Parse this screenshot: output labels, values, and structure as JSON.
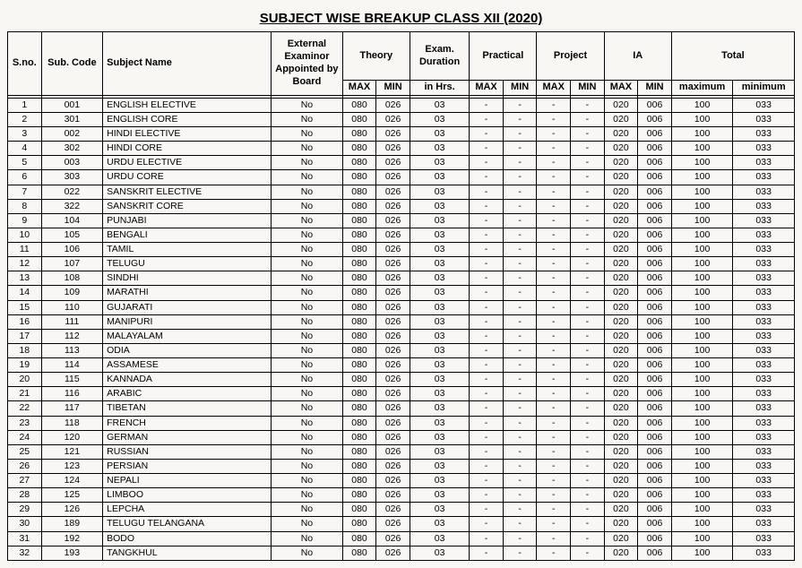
{
  "title": "SUBJECT WISE BREAKUP CLASS XII (2020)",
  "headers": {
    "sno": "S.no.",
    "code": "Sub. Code",
    "subject": "Subject Name",
    "external": "External Examinor Appointed by Board",
    "theory": "Theory",
    "duration": "Exam. Duration",
    "practical": "Practical",
    "project": "Project",
    "ia": "IA",
    "total": "Total",
    "max": "MAX",
    "min": "MIN",
    "inhrs": "in Hrs.",
    "maximum": "maximum",
    "minimum": "minimum"
  },
  "rows": [
    {
      "sno": "1",
      "code": "001",
      "subj": "ENGLISH ELECTIVE",
      "ext": "No",
      "tmax": "080",
      "tmin": "026",
      "dur": "03",
      "pmax": "-",
      "pmin": "-",
      "prmax": "-",
      "prmin": "-",
      "iamax": "020",
      "iamin": "006",
      "totmax": "100",
      "totmin": "033"
    },
    {
      "sno": "2",
      "code": "301",
      "subj": "ENGLISH CORE",
      "ext": "No",
      "tmax": "080",
      "tmin": "026",
      "dur": "03",
      "pmax": "-",
      "pmin": "-",
      "prmax": "-",
      "prmin": "-",
      "iamax": "020",
      "iamin": "006",
      "totmax": "100",
      "totmin": "033"
    },
    {
      "sno": "3",
      "code": "002",
      "subj": "HINDI ELECTIVE",
      "ext": "No",
      "tmax": "080",
      "tmin": "026",
      "dur": "03",
      "pmax": "-",
      "pmin": "-",
      "prmax": "-",
      "prmin": "-",
      "iamax": "020",
      "iamin": "006",
      "totmax": "100",
      "totmin": "033"
    },
    {
      "sno": "4",
      "code": "302",
      "subj": "HINDI CORE",
      "ext": "No",
      "tmax": "080",
      "tmin": "026",
      "dur": "03",
      "pmax": "-",
      "pmin": "-",
      "prmax": "-",
      "prmin": "-",
      "iamax": "020",
      "iamin": "006",
      "totmax": "100",
      "totmin": "033"
    },
    {
      "sno": "5",
      "code": "003",
      "subj": "URDU ELECTIVE",
      "ext": "No",
      "tmax": "080",
      "tmin": "026",
      "dur": "03",
      "pmax": "-",
      "pmin": "-",
      "prmax": "-",
      "prmin": "-",
      "iamax": "020",
      "iamin": "006",
      "totmax": "100",
      "totmin": "033"
    },
    {
      "sno": "6",
      "code": "303",
      "subj": "URDU CORE",
      "ext": "No",
      "tmax": "080",
      "tmin": "026",
      "dur": "03",
      "pmax": "-",
      "pmin": "-",
      "prmax": "-",
      "prmin": "-",
      "iamax": "020",
      "iamin": "006",
      "totmax": "100",
      "totmin": "033"
    },
    {
      "sno": "7",
      "code": "022",
      "subj": "SANSKRIT ELECTIVE",
      "ext": "No",
      "tmax": "080",
      "tmin": "026",
      "dur": "03",
      "pmax": "-",
      "pmin": "-",
      "prmax": "-",
      "prmin": "-",
      "iamax": "020",
      "iamin": "006",
      "totmax": "100",
      "totmin": "033"
    },
    {
      "sno": "8",
      "code": "322",
      "subj": "SANSKRIT CORE",
      "ext": "No",
      "tmax": "080",
      "tmin": "026",
      "dur": "03",
      "pmax": "-",
      "pmin": "-",
      "prmax": "-",
      "prmin": "-",
      "iamax": "020",
      "iamin": "006",
      "totmax": "100",
      "totmin": "033"
    },
    {
      "sno": "9",
      "code": "104",
      "subj": "PUNJABI",
      "ext": "No",
      "tmax": "080",
      "tmin": "026",
      "dur": "03",
      "pmax": "-",
      "pmin": "-",
      "prmax": "-",
      "prmin": "-",
      "iamax": "020",
      "iamin": "006",
      "totmax": "100",
      "totmin": "033"
    },
    {
      "sno": "10",
      "code": "105",
      "subj": "BENGALI",
      "ext": "No",
      "tmax": "080",
      "tmin": "026",
      "dur": "03",
      "pmax": "-",
      "pmin": "-",
      "prmax": "-",
      "prmin": "-",
      "iamax": "020",
      "iamin": "006",
      "totmax": "100",
      "totmin": "033"
    },
    {
      "sno": "11",
      "code": "106",
      "subj": "TAMIL",
      "ext": "No",
      "tmax": "080",
      "tmin": "026",
      "dur": "03",
      "pmax": "-",
      "pmin": "-",
      "prmax": "-",
      "prmin": "-",
      "iamax": "020",
      "iamin": "006",
      "totmax": "100",
      "totmin": "033"
    },
    {
      "sno": "12",
      "code": "107",
      "subj": "TELUGU",
      "ext": "No",
      "tmax": "080",
      "tmin": "026",
      "dur": "03",
      "pmax": "-",
      "pmin": "-",
      "prmax": "-",
      "prmin": "-",
      "iamax": "020",
      "iamin": "006",
      "totmax": "100",
      "totmin": "033"
    },
    {
      "sno": "13",
      "code": "108",
      "subj": "SINDHI",
      "ext": "No",
      "tmax": "080",
      "tmin": "026",
      "dur": "03",
      "pmax": "-",
      "pmin": "-",
      "prmax": "-",
      "prmin": "-",
      "iamax": "020",
      "iamin": "006",
      "totmax": "100",
      "totmin": "033"
    },
    {
      "sno": "14",
      "code": "109",
      "subj": "MARATHI",
      "ext": "No",
      "tmax": "080",
      "tmin": "026",
      "dur": "03",
      "pmax": "-",
      "pmin": "-",
      "prmax": "-",
      "prmin": "-",
      "iamax": "020",
      "iamin": "006",
      "totmax": "100",
      "totmin": "033"
    },
    {
      "sno": "15",
      "code": "110",
      "subj": "GUJARATI",
      "ext": "No",
      "tmax": "080",
      "tmin": "026",
      "dur": "03",
      "pmax": "-",
      "pmin": "-",
      "prmax": "-",
      "prmin": "-",
      "iamax": "020",
      "iamin": "006",
      "totmax": "100",
      "totmin": "033"
    },
    {
      "sno": "16",
      "code": "111",
      "subj": "MANIPURI",
      "ext": "No",
      "tmax": "080",
      "tmin": "026",
      "dur": "03",
      "pmax": "-",
      "pmin": "-",
      "prmax": "-",
      "prmin": "-",
      "iamax": "020",
      "iamin": "006",
      "totmax": "100",
      "totmin": "033"
    },
    {
      "sno": "17",
      "code": "112",
      "subj": "MALAYALAM",
      "ext": "No",
      "tmax": "080",
      "tmin": "026",
      "dur": "03",
      "pmax": "-",
      "pmin": "-",
      "prmax": "-",
      "prmin": "-",
      "iamax": "020",
      "iamin": "006",
      "totmax": "100",
      "totmin": "033"
    },
    {
      "sno": "18",
      "code": "113",
      "subj": "ODIA",
      "ext": "No",
      "tmax": "080",
      "tmin": "026",
      "dur": "03",
      "pmax": "-",
      "pmin": "-",
      "prmax": "-",
      "prmin": "-",
      "iamax": "020",
      "iamin": "006",
      "totmax": "100",
      "totmin": "033"
    },
    {
      "sno": "19",
      "code": "114",
      "subj": "ASSAMESE",
      "ext": "No",
      "tmax": "080",
      "tmin": "026",
      "dur": "03",
      "pmax": "-",
      "pmin": "-",
      "prmax": "-",
      "prmin": "-",
      "iamax": "020",
      "iamin": "006",
      "totmax": "100",
      "totmin": "033"
    },
    {
      "sno": "20",
      "code": "115",
      "subj": "KANNADA",
      "ext": "No",
      "tmax": "080",
      "tmin": "026",
      "dur": "03",
      "pmax": "-",
      "pmin": "-",
      "prmax": "-",
      "prmin": "-",
      "iamax": "020",
      "iamin": "006",
      "totmax": "100",
      "totmin": "033"
    },
    {
      "sno": "21",
      "code": "116",
      "subj": "ARABIC",
      "ext": "No",
      "tmax": "080",
      "tmin": "026",
      "dur": "03",
      "pmax": "-",
      "pmin": "-",
      "prmax": "-",
      "prmin": "-",
      "iamax": "020",
      "iamin": "006",
      "totmax": "100",
      "totmin": "033"
    },
    {
      "sno": "22",
      "code": "117",
      "subj": "TIBETAN",
      "ext": "No",
      "tmax": "080",
      "tmin": "026",
      "dur": "03",
      "pmax": "-",
      "pmin": "-",
      "prmax": "-",
      "prmin": "-",
      "iamax": "020",
      "iamin": "006",
      "totmax": "100",
      "totmin": "033"
    },
    {
      "sno": "23",
      "code": "118",
      "subj": "FRENCH",
      "ext": "No",
      "tmax": "080",
      "tmin": "026",
      "dur": "03",
      "pmax": "-",
      "pmin": "-",
      "prmax": "-",
      "prmin": "-",
      "iamax": "020",
      "iamin": "006",
      "totmax": "100",
      "totmin": "033"
    },
    {
      "sno": "24",
      "code": "120",
      "subj": "GERMAN",
      "ext": "No",
      "tmax": "080",
      "tmin": "026",
      "dur": "03",
      "pmax": "-",
      "pmin": "-",
      "prmax": "-",
      "prmin": "-",
      "iamax": "020",
      "iamin": "006",
      "totmax": "100",
      "totmin": "033"
    },
    {
      "sno": "25",
      "code": "121",
      "subj": "RUSSIAN",
      "ext": "No",
      "tmax": "080",
      "tmin": "026",
      "dur": "03",
      "pmax": "-",
      "pmin": "-",
      "prmax": "-",
      "prmin": "-",
      "iamax": "020",
      "iamin": "006",
      "totmax": "100",
      "totmin": "033"
    },
    {
      "sno": "26",
      "code": "123",
      "subj": "PERSIAN",
      "ext": "No",
      "tmax": "080",
      "tmin": "026",
      "dur": "03",
      "pmax": "-",
      "pmin": "-",
      "prmax": "-",
      "prmin": "-",
      "iamax": "020",
      "iamin": "006",
      "totmax": "100",
      "totmin": "033"
    },
    {
      "sno": "27",
      "code": "124",
      "subj": "NEPALI",
      "ext": "No",
      "tmax": "080",
      "tmin": "026",
      "dur": "03",
      "pmax": "-",
      "pmin": "-",
      "prmax": "-",
      "prmin": "-",
      "iamax": "020",
      "iamin": "006",
      "totmax": "100",
      "totmin": "033"
    },
    {
      "sno": "28",
      "code": "125",
      "subj": "LIMBOO",
      "ext": "No",
      "tmax": "080",
      "tmin": "026",
      "dur": "03",
      "pmax": "-",
      "pmin": "-",
      "prmax": "-",
      "prmin": "-",
      "iamax": "020",
      "iamin": "006",
      "totmax": "100",
      "totmin": "033"
    },
    {
      "sno": "29",
      "code": "126",
      "subj": "LEPCHA",
      "ext": "No",
      "tmax": "080",
      "tmin": "026",
      "dur": "03",
      "pmax": "-",
      "pmin": "-",
      "prmax": "-",
      "prmin": "-",
      "iamax": "020",
      "iamin": "006",
      "totmax": "100",
      "totmin": "033"
    },
    {
      "sno": "30",
      "code": "189",
      "subj": "TELUGU TELANGANA",
      "ext": "No",
      "tmax": "080",
      "tmin": "026",
      "dur": "03",
      "pmax": "-",
      "pmin": "-",
      "prmax": "-",
      "prmin": "-",
      "iamax": "020",
      "iamin": "006",
      "totmax": "100",
      "totmin": "033"
    },
    {
      "sno": "31",
      "code": "192",
      "subj": "BODO",
      "ext": "No",
      "tmax": "080",
      "tmin": "026",
      "dur": "03",
      "pmax": "-",
      "pmin": "-",
      "prmax": "-",
      "prmin": "-",
      "iamax": "020",
      "iamin": "006",
      "totmax": "100",
      "totmin": "033"
    },
    {
      "sno": "32",
      "code": "193",
      "subj": "TANGKHUL",
      "ext": "No",
      "tmax": "080",
      "tmin": "026",
      "dur": "03",
      "pmax": "-",
      "pmin": "-",
      "prmax": "-",
      "prmin": "-",
      "iamax": "020",
      "iamin": "006",
      "totmax": "100",
      "totmin": "033"
    }
  ]
}
